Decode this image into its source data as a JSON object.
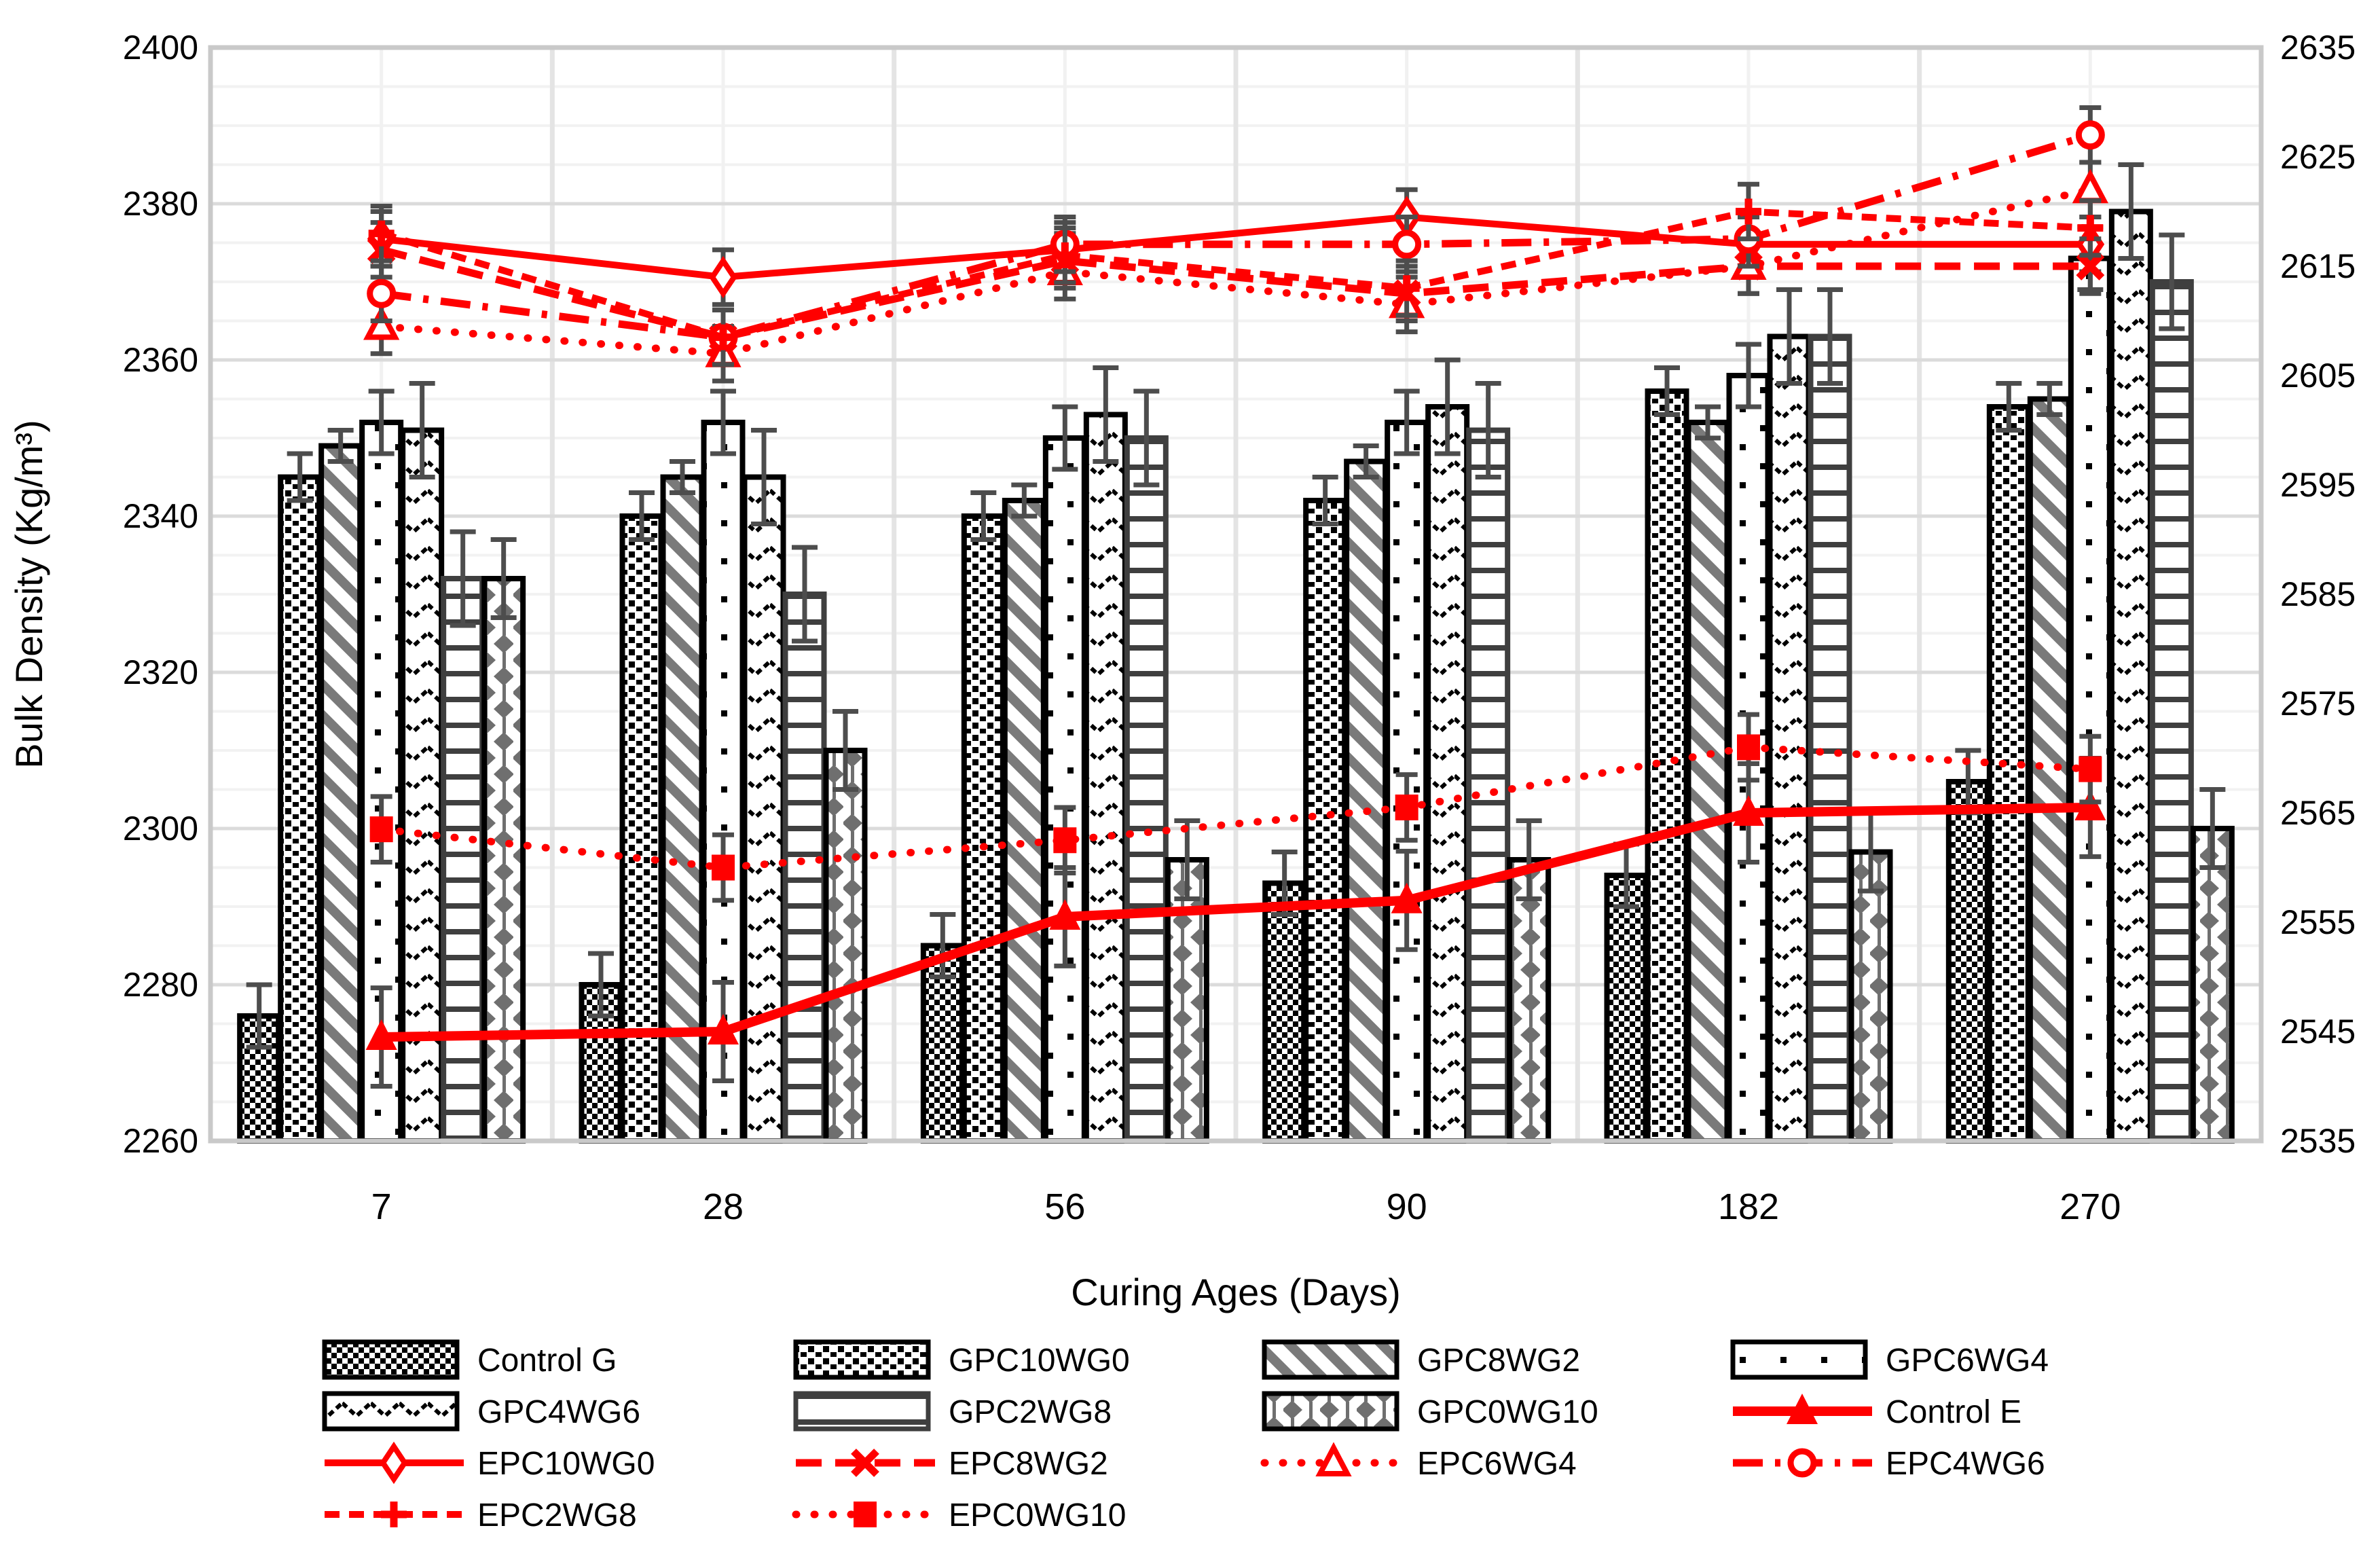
{
  "figure": {
    "x_title": "Curing Ages (Days)",
    "y_title": "Bulk Density (Kg/m³)"
  },
  "colors": {
    "red": "#FF0000",
    "error_bar": "#4d4d4d",
    "grid_major": "#DBDBDB",
    "grid_minor": "#F2F2F2",
    "grid_center": "#F1F1F1",
    "grid_boundary": "#E4E4E4",
    "plot_border": "#C9C9C9",
    "text": "#000000",
    "pattern_gray": "#7a7a7a",
    "hline_gray": "#3f3f3f",
    "diamond_gray": "#6f6f6f"
  },
  "chart_data": [
    {
      "type": "bar",
      "title": "",
      "xlabel": "Curing Ages (Days)",
      "ylabel": "Bulk Density (Kg/m³)",
      "axis": "left",
      "categories": [
        "7",
        "28",
        "56",
        "90",
        "182",
        "270"
      ],
      "ylim": [
        2260,
        2400
      ],
      "y_major": 20,
      "y_minor": 5,
      "y_ticks": [
        2400,
        2380,
        2360,
        2340,
        2320,
        2300,
        2280,
        2260
      ],
      "grid": true,
      "series": [
        {
          "name": "Control G",
          "pattern": "checker",
          "stroke": "#000000",
          "err": 4,
          "values": [
            2276,
            2280,
            2285,
            2293,
            2294,
            2306
          ]
        },
        {
          "name": "GPC10WG0",
          "pattern": "dotgrid",
          "stroke": "#000000",
          "err": 3,
          "values": [
            2345,
            2340,
            2340,
            2342,
            2356,
            2354
          ]
        },
        {
          "name": "GPC8WG2",
          "pattern": "diag",
          "stroke": "#000000",
          "err": 2,
          "values": [
            2349,
            2345,
            2342,
            2347,
            2352,
            2355
          ]
        },
        {
          "name": "GPC6WG4",
          "pattern": "sparse",
          "stroke": "#000000",
          "err": 4,
          "values": [
            2352,
            2352,
            2350,
            2352,
            2358,
            2373
          ]
        },
        {
          "name": "GPC4WG6",
          "pattern": "wave",
          "stroke": "#000000",
          "err": 6,
          "values": [
            2351,
            2345,
            2353,
            2354,
            2363,
            2379
          ]
        },
        {
          "name": "GPC2WG8",
          "pattern": "hlines",
          "stroke": "#3f3f3f",
          "err": 6,
          "values": [
            2332,
            2330,
            2350,
            2351,
            2363,
            2370
          ]
        },
        {
          "name": "GPC0WG10",
          "pattern": "diamonds",
          "stroke": "#000000",
          "err": 5,
          "values": [
            2332,
            2310,
            2296,
            2296,
            2297,
            2300
          ]
        }
      ]
    },
    {
      "type": "line",
      "title": "",
      "axis": "right",
      "categories": [
        "7",
        "28",
        "56",
        "90",
        "182",
        "270"
      ],
      "ylim": [
        2535,
        2635
      ],
      "y_major": 10,
      "y_ticks": [
        2635,
        2625,
        2615,
        2605,
        2595,
        2585,
        2575,
        2565,
        2555,
        2545,
        2535
      ],
      "color": "#FF0000",
      "series": [
        {
          "name": "Control E",
          "dash": "",
          "cap": "butt",
          "width": 14,
          "marker": "tri-filled",
          "err": 4.5,
          "values": [
            2544.5,
            2545,
            2555.5,
            2557,
            2565,
            2565.5
          ]
        },
        {
          "name": "EPC10WG0",
          "dash": "",
          "cap": "butt",
          "width": 10,
          "marker": "diamond-open",
          "err": 2.5,
          "values": [
            2617.5,
            2614,
            2616.5,
            2619.5,
            2617,
            2617
          ]
        },
        {
          "name": "EPC8WG2",
          "dash": "38 20",
          "cap": "butt",
          "width": 11,
          "marker": "x",
          "err": 2.5,
          "values": [
            2616.5,
            2608.5,
            2615.5,
            2612.5,
            2615,
            2615
          ]
        },
        {
          "name": "EPC6WG4",
          "dash": "1 26",
          "cap": "round",
          "width": 11,
          "marker": "tri-open",
          "err": 2.5,
          "values": [
            2609.5,
            2607,
            2614.5,
            2611.5,
            2615,
            2622
          ]
        },
        {
          "name": "EPC4WG6",
          "dash": "44 18 8 18",
          "cap": "butt",
          "width": 11,
          "marker": "circle-open",
          "err": 2.5,
          "values": [
            2612.5,
            2608.5,
            2617,
            2617,
            2617.5,
            2627
          ]
        },
        {
          "name": "EPC2WG8",
          "dash": "22 14",
          "cap": "butt",
          "width": 10,
          "marker": "plus",
          "err": 2.5,
          "values": [
            2618,
            2608.5,
            2616,
            2613,
            2620,
            2618.5
          ]
        },
        {
          "name": "EPC0WG10",
          "dash": "1 26",
          "cap": "round",
          "width": 11,
          "marker": "square-filled",
          "err": 3,
          "values": [
            2563.5,
            2560,
            2562.5,
            2565.5,
            2571,
            2569
          ]
        }
      ]
    }
  ],
  "legend": {
    "items": [
      {
        "label": "Control G",
        "kind": "bar"
      },
      {
        "label": "GPC10WG0",
        "kind": "bar"
      },
      {
        "label": "GPC8WG2",
        "kind": "bar"
      },
      {
        "label": "GPC6WG4",
        "kind": "bar"
      },
      {
        "label": "GPC4WG6",
        "kind": "bar"
      },
      {
        "label": "GPC2WG8",
        "kind": "bar"
      },
      {
        "label": "GPC0WG10",
        "kind": "bar"
      },
      {
        "label": "Control E",
        "kind": "line"
      },
      {
        "label": "EPC10WG0",
        "kind": "line"
      },
      {
        "label": "EPC8WG2",
        "kind": "line"
      },
      {
        "label": "EPC6WG4",
        "kind": "line"
      },
      {
        "label": "EPC4WG6",
        "kind": "line"
      },
      {
        "label": "EPC2WG8",
        "kind": "line"
      },
      {
        "label": "EPC0WG10",
        "kind": "line"
      }
    ]
  }
}
